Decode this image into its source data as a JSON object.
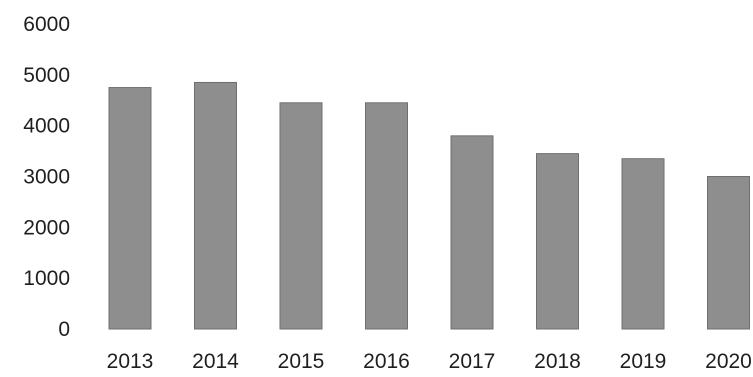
{
  "chart_data": {
    "type": "bar",
    "title": "",
    "xlabel": "",
    "ylabel": "",
    "categories": [
      "2013",
      "2014",
      "2015",
      "2016",
      "2017",
      "2018",
      "2019",
      "2020"
    ],
    "values": [
      4750,
      4850,
      4450,
      4450,
      3800,
      3450,
      3350,
      3000
    ],
    "ylim": [
      0,
      6000
    ],
    "yticks": [
      0,
      1000,
      2000,
      3000,
      4000,
      5000,
      6000
    ],
    "ytick_labels": [
      "0",
      "1000",
      "2000",
      "3000",
      "4000",
      "5000",
      "6000"
    ],
    "grid": false,
    "legend": "none",
    "bar_color": "#8e8e8e"
  }
}
